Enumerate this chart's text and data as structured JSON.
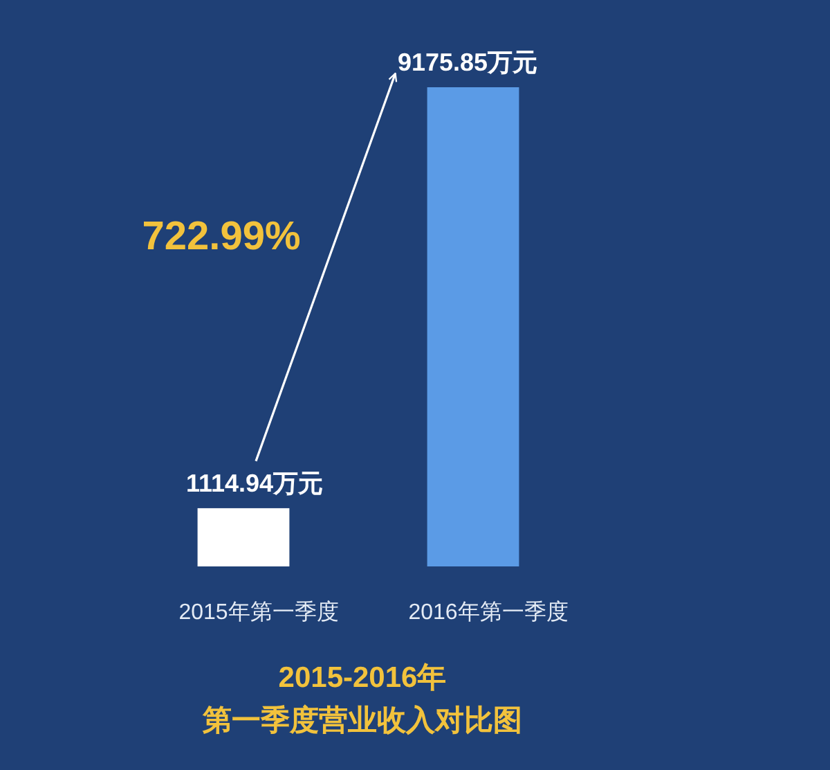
{
  "chart_data": {
    "type": "bar",
    "title": "2015-2016年",
    "subtitle": "第一季度营业收入对比图",
    "categories": [
      "2015年第一季度",
      "2016年第一季度"
    ],
    "values": [
      1114.94,
      9175.85
    ],
    "colors": [
      "#ffffff",
      "#5b9be6"
    ],
    "value_labels": [
      "1114.94万元",
      "9175.85万元"
    ],
    "annotations": [
      "722.99%"
    ]
  }
}
